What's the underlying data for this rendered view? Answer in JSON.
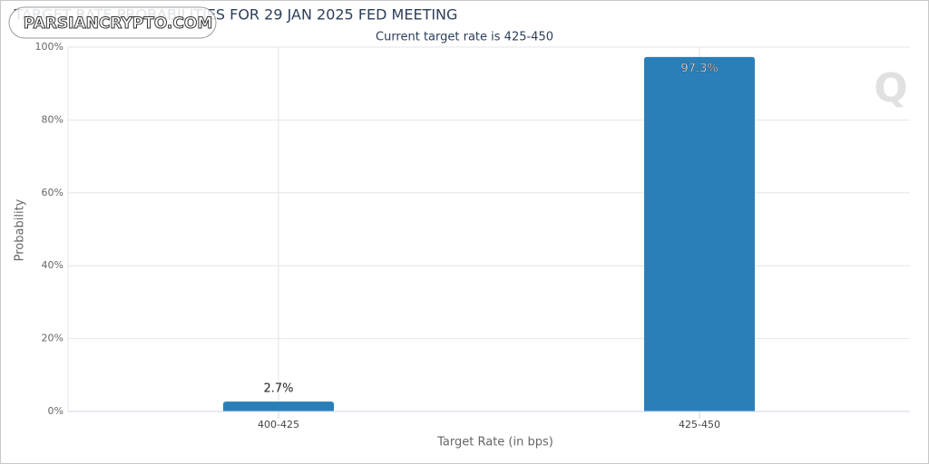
{
  "chart_data": {
    "type": "bar",
    "title": "TARGET RATE PROBABILITIES FOR 29 JAN 2025 FED MEETING",
    "subtitle": "Current target rate is 425-450",
    "watermark": "PARSIANCRYPTO.COM",
    "x_label": "Target Rate (in bps)",
    "y_label": "Probability",
    "categories": [
      "400-425",
      "425-450"
    ],
    "values": [
      2.7,
      97.3
    ],
    "value_labels": [
      "2.7%",
      "97.3%"
    ],
    "color": "#2a7fb8",
    "ylim": [
      0,
      100
    ],
    "yticks": [
      {
        "value": 0,
        "label": "0%"
      },
      {
        "value": 20,
        "label": "20%"
      },
      {
        "value": 40,
        "label": "40%"
      },
      {
        "value": 60,
        "label": "60%"
      },
      {
        "value": 80,
        "label": "80%"
      },
      {
        "value": 100,
        "label": "100%"
      }
    ],
    "grid": true
  }
}
